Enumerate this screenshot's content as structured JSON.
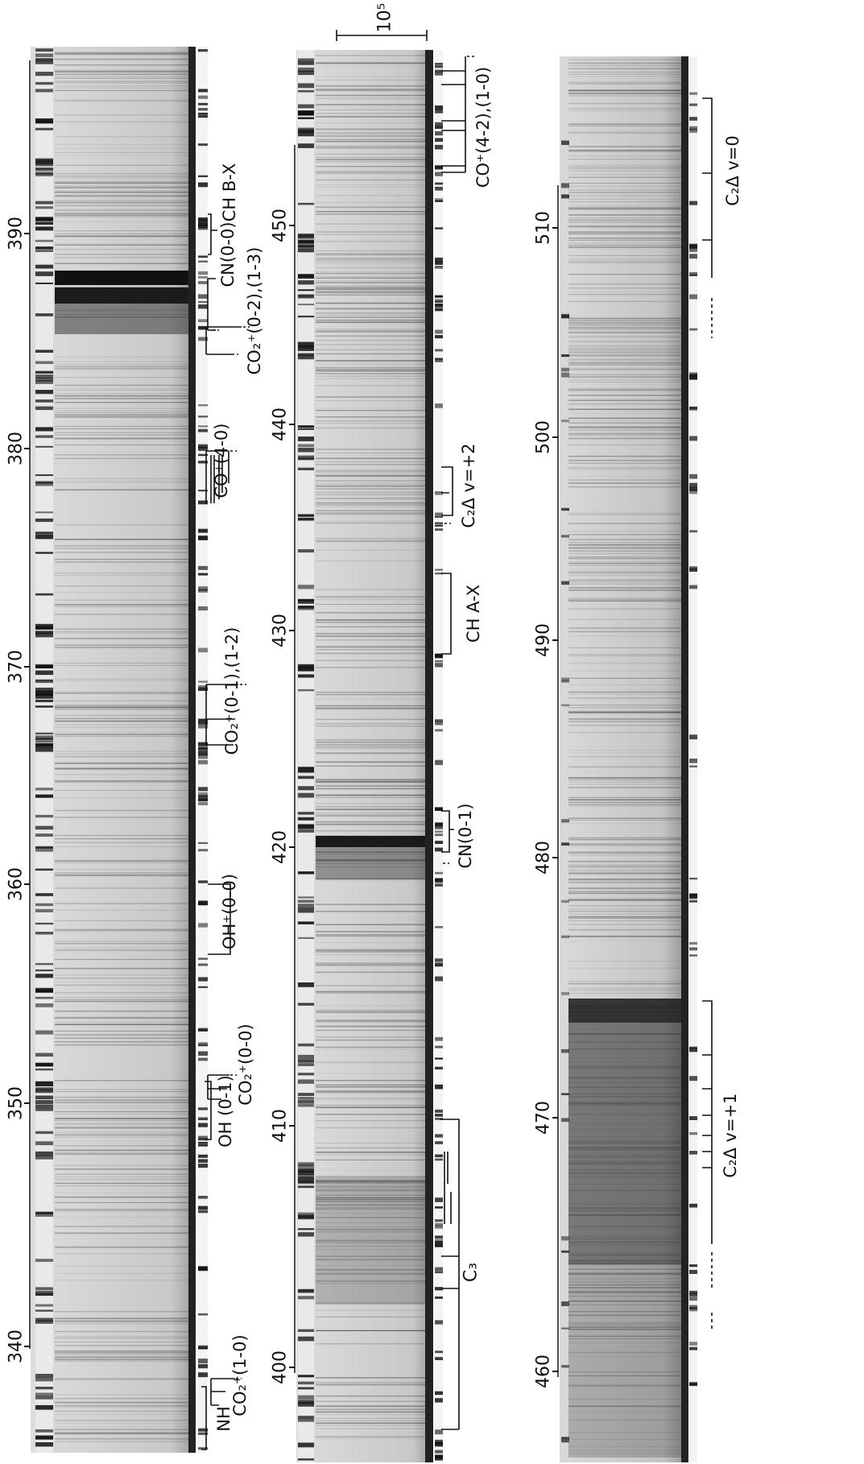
{
  "panels": [
    {
      "id": "left",
      "ticks": [
        "340",
        "350",
        "360",
        "370",
        "380",
        "390"
      ],
      "bands": [
        "NH",
        "CO₂⁺(1-0)",
        "OH (0-1)",
        "CO₂⁺(0-0)",
        "OH⁺(0-0)",
        "CO₂⁺(0-1),(1-2)",
        "CO⁺(4-0)",
        "CO₂⁺(0-2),(1-3)",
        "CN(0-0)",
        "CH B-X"
      ]
    },
    {
      "id": "middle",
      "scale_label": "10⁵",
      "ticks": [
        "400",
        "410",
        "420",
        "430",
        "440",
        "450"
      ],
      "bands": [
        "C₃",
        "CN(0-1)",
        "CH A-X",
        "C₂Δ v=+2",
        "CO⁺(4-2),(1-0)"
      ]
    },
    {
      "id": "right",
      "ticks": [
        "460",
        "470",
        "480",
        "490",
        "500",
        "510"
      ],
      "bands": [
        "C₂Δ v=+1",
        "C₂Δ v=0"
      ]
    }
  ],
  "colors": {
    "film": "#d4d4d4",
    "ink": "#111111",
    "paper": "#ffffff"
  }
}
